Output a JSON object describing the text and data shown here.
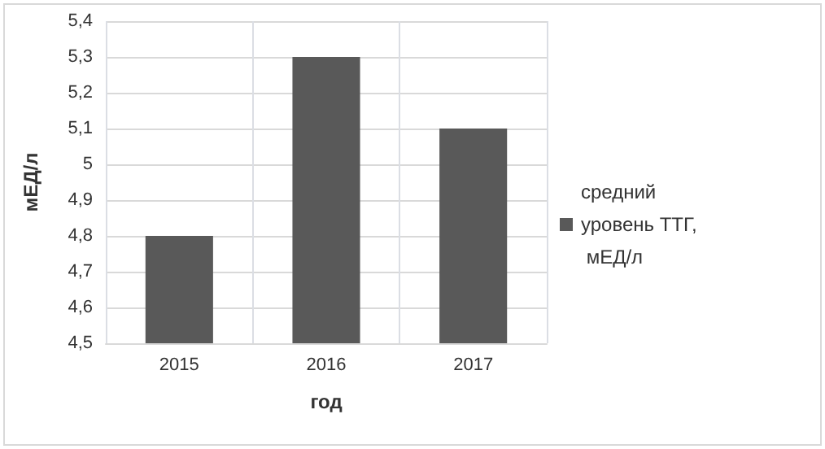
{
  "chart_data": {
    "type": "bar",
    "xlabel": "год",
    "ylabel": "мЕД/л",
    "categories": [
      "2015",
      "2016",
      "2017"
    ],
    "series": [
      {
        "name": "средний уровень ТТГ, мЕД/л",
        "color": "#595959",
        "values": [
          4.8,
          5.3,
          5.1
        ]
      }
    ],
    "ylim": [
      4.5,
      5.4
    ],
    "yticks": [
      {
        "value": 4.5,
        "label": "4,5"
      },
      {
        "value": 4.6,
        "label": "4,6"
      },
      {
        "value": 4.7,
        "label": "4,7"
      },
      {
        "value": 4.8,
        "label": "4,8"
      },
      {
        "value": 4.9,
        "label": "4,9"
      },
      5,
      {
        "value": 5.1,
        "label": "5,1"
      },
      {
        "value": 5.2,
        "label": "5,2"
      },
      {
        "value": 5.3,
        "label": "5,3"
      },
      {
        "value": 5.4,
        "label": "5,4"
      }
    ],
    "grid": true,
    "legend": "right"
  }
}
